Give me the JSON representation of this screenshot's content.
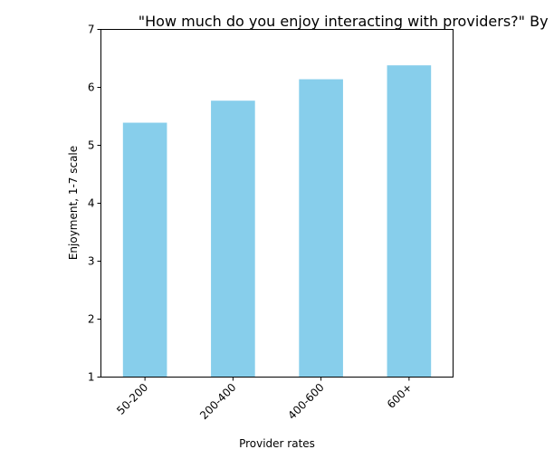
{
  "chart_data": {
    "type": "bar",
    "title": "\"How much do you enjoy interacting with providers?\" By provider rates",
    "xlabel": "Provider rates",
    "ylabel": "Enjoyment, 1-7 scale",
    "categories": [
      "50-200",
      "200-400",
      "400-600",
      "600+"
    ],
    "values": [
      5.39,
      5.77,
      6.14,
      6.38
    ],
    "ylim": [
      1,
      7
    ],
    "yticks": [
      1,
      2,
      3,
      4,
      5,
      6,
      7
    ],
    "bar_color": "#87CEEB",
    "grid": false,
    "legend": "none"
  }
}
